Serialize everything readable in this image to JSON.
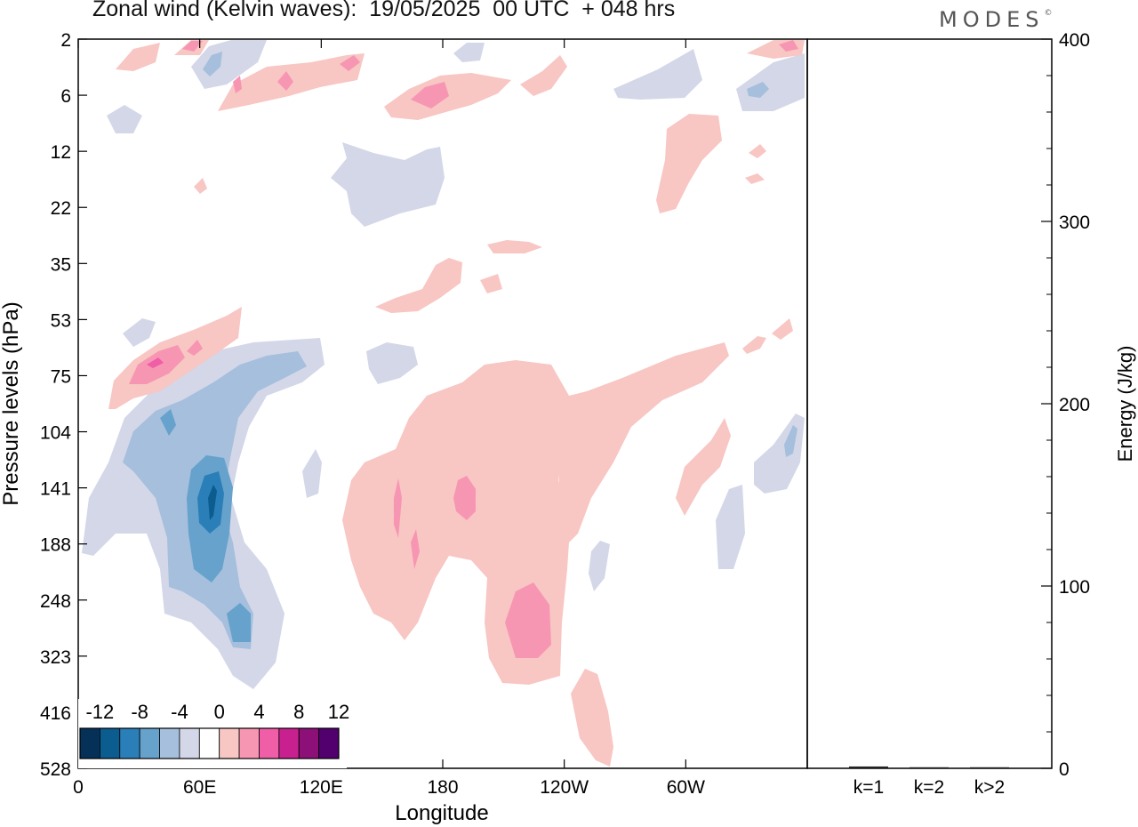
{
  "title": "Zonal wind (Kelvin waves):  19/05/2025  00 UTC  + 048 hrs",
  "brand": "MODES",
  "brand_mark": "©",
  "colors": {
    "levels": [
      "#053158",
      "#0b5c8f",
      "#2a7fb8",
      "#66a2cc",
      "#a5bfdc",
      "#d3d7e8",
      "#ffffff",
      "#f8c6c3",
      "#f796b2",
      "#ef5ea6",
      "#c8208f",
      "#8c1078",
      "#52006e"
    ],
    "neg4": "#d3d7e8",
    "neg8": "#a5bfdc",
    "neg12": "#66a2cc",
    "neg16": "#2a7fb8",
    "neg20": "#0b5c8f",
    "pos4": "#f8c6c3",
    "pos8": "#f796b2",
    "pos12": "#ef5ea6"
  },
  "chart_data": [
    {
      "type": "heatmap",
      "title": "Zonal wind (Kelvin waves):  19/05/2025  00 UTC  + 048 hrs",
      "xlabel": "Longitude",
      "ylabel": "Pressure levels (hPa)",
      "x_ticks": [
        "0",
        "60E",
        "120E",
        "180",
        "120W",
        "60W"
      ],
      "x_range": [
        0,
        360
      ],
      "y_ticks": [
        "2",
        "6",
        "12",
        "22",
        "35",
        "53",
        "75",
        "104",
        "141",
        "188",
        "248",
        "323",
        "416",
        "528"
      ],
      "y_scale": "log",
      "colorbar_labels": [
        "-12",
        "-8",
        "-4",
        "0",
        "4",
        "8",
        "12"
      ],
      "features": [
        {
          "sign": "negative",
          "level": -4,
          "lon": [
            5,
            120
          ],
          "p": [
            53,
            416
          ]
        },
        {
          "sign": "negative",
          "level": -8,
          "lon": [
            20,
            115
          ],
          "p": [
            70,
            323
          ]
        },
        {
          "sign": "negative",
          "level": -12,
          "lon": [
            50,
            78
          ],
          "p": [
            104,
            248
          ]
        },
        {
          "sign": "negative",
          "level": -16,
          "lon": [
            58,
            74
          ],
          "p": [
            120,
            200
          ]
        },
        {
          "sign": "negative",
          "level": -4,
          "lon": [
            125,
            185
          ],
          "p": [
            12,
            28
          ]
        },
        {
          "sign": "positive",
          "level": 4,
          "lon": [
            18,
            80
          ],
          "p": [
            48,
            110
          ]
        },
        {
          "sign": "positive",
          "level": 8,
          "lon": [
            25,
            55
          ],
          "p": [
            62,
            85
          ]
        },
        {
          "sign": "positive",
          "level": 4,
          "lon": [
            130,
            250
          ],
          "p": [
            60,
            528
          ]
        },
        {
          "sign": "positive",
          "level": 8,
          "lon": [
            185,
            200
          ],
          "p": [
            125,
            160
          ]
        },
        {
          "sign": "positive",
          "level": 8,
          "lon": [
            212,
            232
          ],
          "p": [
            230,
            330
          ]
        },
        {
          "sign": "positive",
          "level": 4,
          "lon": [
            150,
            215
          ],
          "p": [
            4,
            8
          ]
        },
        {
          "sign": "positive",
          "level": 4,
          "lon": [
            285,
            318
          ],
          "p": [
            9,
            23
          ]
        },
        {
          "sign": "positive",
          "level": 4,
          "lon": [
            285,
            335
          ],
          "p": [
            80,
            200
          ]
        }
      ]
    },
    {
      "type": "bar",
      "categories": [
        "k=1",
        "k=2",
        "k>2"
      ],
      "values": [
        1,
        0,
        0.5
      ],
      "ylabel": "Energy (J/kg)",
      "ylim": [
        0,
        400
      ],
      "y_ticks": [
        "0",
        "100",
        "200",
        "300",
        "400"
      ]
    }
  ]
}
